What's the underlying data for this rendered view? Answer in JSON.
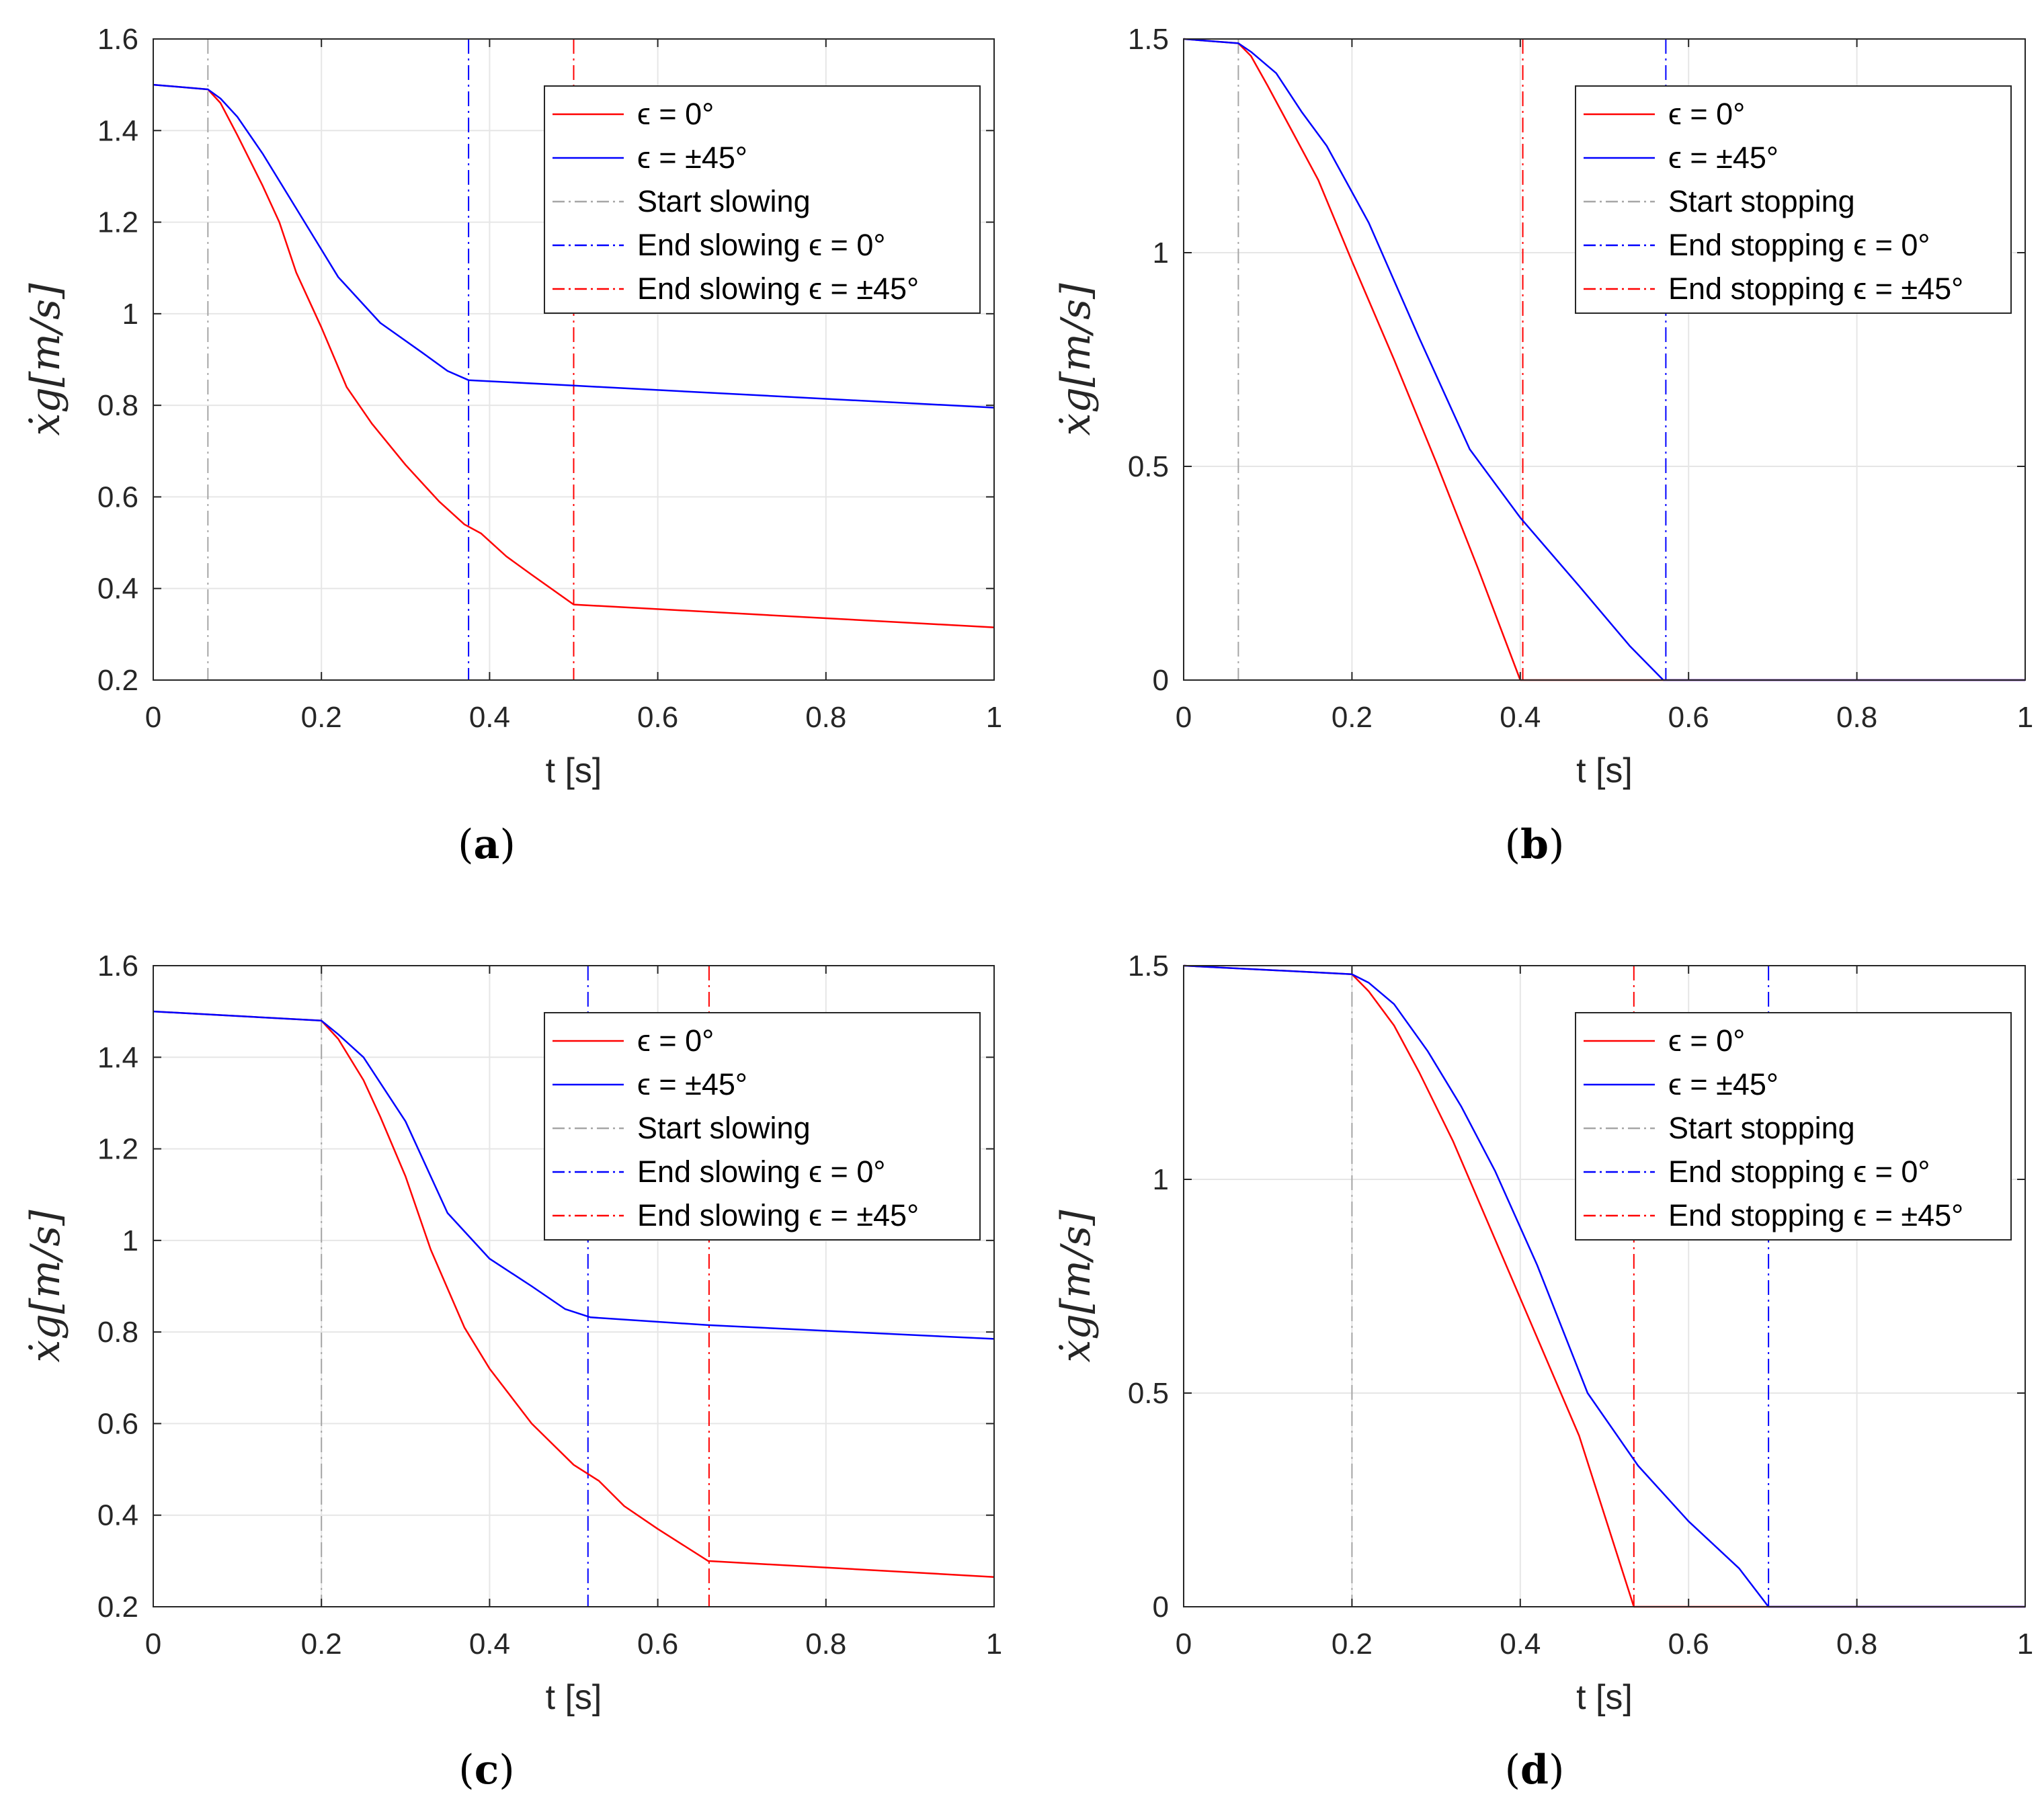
{
  "colors": {
    "red": "#ff0000",
    "blue": "#0000ff",
    "gray": "#a6a6a6",
    "grid": "#e6e6e6",
    "axis": "#262626"
  },
  "chart_data": [
    {
      "type": "line",
      "caption": "a",
      "xlabel": "t [s]",
      "ylabel": "ẋg[m/s]",
      "xlim": [
        0,
        1
      ],
      "ylim": [
        0.2,
        1.6
      ],
      "xticks": [
        "0",
        "0.2",
        "0.4",
        "0.6",
        "0.8",
        "1"
      ],
      "yticks": [
        "0.2",
        "0.4",
        "0.6",
        "0.8",
        "1",
        "1.2",
        "1.4",
        "1.6"
      ],
      "xtick_values": [
        0,
        0.2,
        0.4,
        0.6,
        0.8,
        1
      ],
      "ytick_values": [
        0.2,
        0.4,
        0.6,
        0.8,
        1.0,
        1.2,
        1.4,
        1.6
      ],
      "grid": true,
      "legend_position": "top-right",
      "series": [
        {
          "name": "ϵ = 0°",
          "style": "solid",
          "color": "red",
          "x": [
            0,
            0.065,
            0.08,
            0.1,
            0.13,
            0.15,
            0.17,
            0.2,
            0.23,
            0.26,
            0.3,
            0.34,
            0.37,
            0.39,
            0.42,
            0.45,
            0.5,
            1.0
          ],
          "y": [
            1.5,
            1.49,
            1.46,
            1.39,
            1.28,
            1.2,
            1.09,
            0.97,
            0.84,
            0.76,
            0.67,
            0.59,
            0.54,
            0.52,
            0.47,
            0.43,
            0.365,
            0.315
          ]
        },
        {
          "name": "ϵ = ±45°",
          "style": "solid",
          "color": "blue",
          "x": [
            0,
            0.065,
            0.08,
            0.1,
            0.13,
            0.17,
            0.22,
            0.27,
            0.32,
            0.35,
            0.375,
            0.5,
            1.0
          ],
          "y": [
            1.5,
            1.49,
            1.47,
            1.43,
            1.35,
            1.23,
            1.08,
            0.98,
            0.915,
            0.875,
            0.855,
            0.843,
            0.795
          ]
        }
      ],
      "vlines": [
        {
          "name": "Start slowing",
          "x": 0.065,
          "color": "gray"
        },
        {
          "name": "End slowing ϵ = 0°",
          "x": 0.375,
          "color": "blue"
        },
        {
          "name": "End slowing ϵ = ±45°",
          "x": 0.5,
          "color": "red"
        }
      ]
    },
    {
      "type": "line",
      "caption": "b",
      "xlabel": "t [s]",
      "ylabel": "ẋg[m/s]",
      "xlim": [
        0,
        1
      ],
      "ylim": [
        0,
        1.5
      ],
      "xticks": [
        "0",
        "0.2",
        "0.4",
        "0.6",
        "0.8",
        "1"
      ],
      "yticks": [
        "0",
        "0.5",
        "1",
        "1.5"
      ],
      "xtick_values": [
        0,
        0.2,
        0.4,
        0.6,
        0.8,
        1
      ],
      "ytick_values": [
        0,
        0.5,
        1.0,
        1.5
      ],
      "grid": true,
      "legend_position": "top-right",
      "series": [
        {
          "name": "ϵ = 0°",
          "style": "solid",
          "color": "red",
          "x": [
            0,
            0.065,
            0.08,
            0.1,
            0.13,
            0.16,
            0.2,
            0.25,
            0.3,
            0.35,
            0.4,
            1.0
          ],
          "y": [
            1.5,
            1.49,
            1.46,
            1.39,
            1.28,
            1.17,
            0.98,
            0.75,
            0.51,
            0.26,
            0.0,
            0.0
          ]
        },
        {
          "name": "ϵ = ±45°",
          "style": "solid",
          "color": "blue",
          "x": [
            0,
            0.065,
            0.08,
            0.11,
            0.14,
            0.17,
            0.22,
            0.28,
            0.34,
            0.4,
            0.47,
            0.53,
            0.57,
            1.0
          ],
          "y": [
            1.5,
            1.49,
            1.47,
            1.42,
            1.33,
            1.25,
            1.07,
            0.8,
            0.54,
            0.38,
            0.22,
            0.08,
            0.0,
            0.0
          ]
        }
      ],
      "vlines": [
        {
          "name": "Start stopping",
          "x": 0.065,
          "color": "gray"
        },
        {
          "name": "End stopping ϵ = 0°",
          "x": 0.573,
          "color": "blue"
        },
        {
          "name": "End stopping ϵ = ±45°",
          "x": 0.403,
          "color": "red"
        }
      ]
    },
    {
      "type": "line",
      "caption": "c",
      "xlabel": "t [s]",
      "ylabel": "ẋg[m/s]",
      "xlim": [
        0,
        1
      ],
      "ylim": [
        0.2,
        1.6
      ],
      "xticks": [
        "0",
        "0.2",
        "0.4",
        "0.6",
        "0.8",
        "1"
      ],
      "yticks": [
        "0.2",
        "0.4",
        "0.6",
        "0.8",
        "1",
        "1.2",
        "1.4",
        "1.6"
      ],
      "xtick_values": [
        0,
        0.2,
        0.4,
        0.6,
        0.8,
        1
      ],
      "ytick_values": [
        0.2,
        0.4,
        0.6,
        0.8,
        1.0,
        1.2,
        1.4,
        1.6
      ],
      "grid": true,
      "legend_position": "top-right",
      "series": [
        {
          "name": "ϵ = 0°",
          "style": "solid",
          "color": "red",
          "x": [
            0,
            0.2,
            0.22,
            0.25,
            0.27,
            0.3,
            0.33,
            0.37,
            0.4,
            0.45,
            0.5,
            0.53,
            0.56,
            0.6,
            0.66,
            1.0
          ],
          "y": [
            1.5,
            1.48,
            1.44,
            1.35,
            1.27,
            1.14,
            0.98,
            0.81,
            0.72,
            0.6,
            0.51,
            0.475,
            0.42,
            0.37,
            0.3,
            0.265
          ]
        },
        {
          "name": "ϵ = ±45°",
          "style": "solid",
          "color": "blue",
          "x": [
            0,
            0.2,
            0.22,
            0.25,
            0.3,
            0.35,
            0.4,
            0.45,
            0.49,
            0.52,
            0.66,
            1.0
          ],
          "y": [
            1.5,
            1.48,
            1.45,
            1.4,
            1.26,
            1.06,
            0.96,
            0.9,
            0.85,
            0.832,
            0.815,
            0.785
          ]
        }
      ],
      "vlines": [
        {
          "name": "Start slowing",
          "x": 0.2,
          "color": "gray"
        },
        {
          "name": "End slowing ϵ = 0°",
          "x": 0.517,
          "color": "blue"
        },
        {
          "name": "End slowing ϵ = ±45°",
          "x": 0.661,
          "color": "red"
        }
      ]
    },
    {
      "type": "line",
      "caption": "d",
      "xlabel": "t [s]",
      "ylabel": "ẋg[m/s]",
      "xlim": [
        0,
        1
      ],
      "ylim": [
        0,
        1.5
      ],
      "xticks": [
        "0",
        "0.2",
        "0.4",
        "0.6",
        "0.8",
        "1"
      ],
      "yticks": [
        "0",
        "0.5",
        "1",
        "1.5"
      ],
      "xtick_values": [
        0,
        0.2,
        0.4,
        0.6,
        0.8,
        1
      ],
      "ytick_values": [
        0,
        0.5,
        1.0,
        1.5
      ],
      "grid": true,
      "legend_position": "top-right",
      "series": [
        {
          "name": "ϵ = 0°",
          "style": "solid",
          "color": "red",
          "x": [
            0,
            0.2,
            0.22,
            0.25,
            0.28,
            0.32,
            0.37,
            0.42,
            0.47,
            0.535,
            1.0
          ],
          "y": [
            1.5,
            1.48,
            1.44,
            1.36,
            1.25,
            1.09,
            0.86,
            0.63,
            0.4,
            0.0,
            0.0
          ]
        },
        {
          "name": "ϵ = ±45°",
          "style": "solid",
          "color": "blue",
          "x": [
            0,
            0.2,
            0.22,
            0.25,
            0.29,
            0.33,
            0.37,
            0.42,
            0.48,
            0.54,
            0.6,
            0.66,
            0.695,
            1.0
          ],
          "y": [
            1.5,
            1.48,
            1.46,
            1.41,
            1.3,
            1.17,
            1.02,
            0.8,
            0.5,
            0.33,
            0.2,
            0.09,
            0.0,
            0.0
          ]
        }
      ],
      "vlines": [
        {
          "name": "Start stopping",
          "x": 0.2,
          "color": "gray"
        },
        {
          "name": "End stopping ϵ = 0°",
          "x": 0.695,
          "color": "blue"
        },
        {
          "name": "End stopping ϵ = ±45°",
          "x": 0.535,
          "color": "red"
        }
      ]
    }
  ]
}
